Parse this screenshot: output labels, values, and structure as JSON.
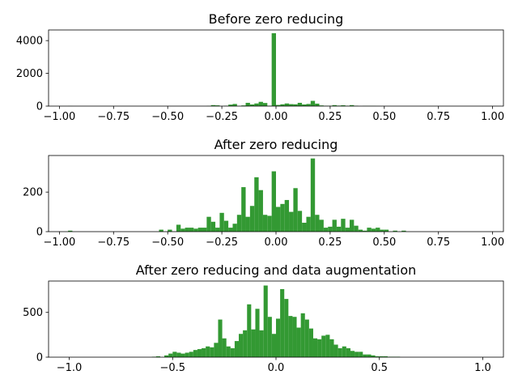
{
  "chart_data": [
    {
      "type": "bar",
      "title": "Before zero reducing",
      "xlim": [
        -1.05,
        1.05
      ],
      "ylim": [
        0,
        4650
      ],
      "xticks": [
        -1.0,
        -0.75,
        -0.5,
        -0.25,
        0.0,
        0.25,
        0.5,
        0.75,
        1.0
      ],
      "xtick_labels": [
        "−1.00",
        "−0.75",
        "−0.50",
        "−0.25",
        "0.00",
        "0.25",
        "0.50",
        "0.75",
        "1.00"
      ],
      "yticks": [
        0,
        2000,
        4000
      ],
      "ytick_labels": [
        "0",
        "2000",
        "4000"
      ],
      "bar_width": 0.02,
      "bar_color": "#339933",
      "x": [
        -0.95,
        -0.31,
        -0.29,
        -0.27,
        -0.23,
        -0.21,
        -0.19,
        -0.15,
        -0.13,
        -0.11,
        -0.09,
        -0.07,
        -0.05,
        -0.03,
        -0.01,
        0.01,
        0.03,
        0.05,
        0.07,
        0.09,
        0.11,
        0.13,
        0.15,
        0.17,
        0.19,
        0.21,
        0.23,
        0.25,
        0.27,
        0.29,
        0.31,
        0.33,
        0.35,
        0.37,
        0.41,
        0.43,
        0.45,
        0.47
      ],
      "values": [
        5,
        10,
        60,
        45,
        20,
        90,
        130,
        40,
        200,
        100,
        160,
        260,
        190,
        20,
        4450,
        70,
        110,
        160,
        120,
        110,
        200,
        100,
        130,
        320,
        150,
        40,
        20,
        20,
        60,
        30,
        50,
        20,
        60,
        20,
        10,
        10,
        10,
        5
      ]
    },
    {
      "type": "bar",
      "title": "After zero reducing",
      "xlim": [
        -1.05,
        1.05
      ],
      "ylim": [
        0,
        385
      ],
      "xticks": [
        -1.0,
        -0.75,
        -0.5,
        -0.25,
        0.0,
        0.25,
        0.5,
        0.75,
        1.0
      ],
      "xtick_labels": [
        "−1.00",
        "−0.75",
        "−0.50",
        "−0.25",
        "0.00",
        "0.25",
        "0.50",
        "0.75",
        "1.00"
      ],
      "yticks": [
        0,
        200
      ],
      "ytick_labels": [
        "0",
        "200"
      ],
      "bar_width": 0.02,
      "bar_color": "#339933",
      "x": [
        -0.95,
        -0.53,
        -0.49,
        -0.45,
        -0.43,
        -0.41,
        -0.39,
        -0.37,
        -0.35,
        -0.33,
        -0.31,
        -0.29,
        -0.27,
        -0.25,
        -0.23,
        -0.21,
        -0.19,
        -0.17,
        -0.15,
        -0.13,
        -0.11,
        -0.09,
        -0.07,
        -0.05,
        -0.03,
        -0.01,
        0.01,
        0.03,
        0.05,
        0.07,
        0.09,
        0.11,
        0.13,
        0.15,
        0.17,
        0.19,
        0.21,
        0.23,
        0.25,
        0.27,
        0.29,
        0.31,
        0.33,
        0.35,
        0.37,
        0.39,
        0.41,
        0.43,
        0.45,
        0.47,
        0.49,
        0.51,
        0.55,
        0.59
      ],
      "values": [
        5,
        10,
        10,
        35,
        15,
        20,
        20,
        15,
        20,
        20,
        75,
        50,
        20,
        95,
        55,
        20,
        40,
        85,
        225,
        75,
        130,
        275,
        210,
        85,
        80,
        305,
        125,
        140,
        160,
        100,
        220,
        105,
        45,
        75,
        370,
        85,
        60,
        20,
        25,
        60,
        25,
        65,
        20,
        60,
        30,
        10,
        5,
        20,
        15,
        20,
        10,
        10,
        5,
        5
      ]
    },
    {
      "type": "bar",
      "title": "After zero reducing and data augmentation",
      "xlim": [
        -1.1,
        1.1
      ],
      "ylim": [
        0,
        850
      ],
      "xticks": [
        -1.0,
        -0.5,
        0.0,
        0.5,
        1.0
      ],
      "xtick_labels": [
        "−1.0",
        "−0.5",
        "0.0",
        "0.5",
        "1.0"
      ],
      "yticks": [
        0,
        500
      ],
      "ytick_labels": [
        "0",
        "500"
      ],
      "bar_width": 0.02,
      "bar_color": "#339933",
      "x": [
        -0.59,
        -0.57,
        -0.53,
        -0.51,
        -0.49,
        -0.47,
        -0.45,
        -0.43,
        -0.41,
        -0.39,
        -0.37,
        -0.35,
        -0.33,
        -0.31,
        -0.29,
        -0.27,
        -0.25,
        -0.23,
        -0.21,
        -0.19,
        -0.17,
        -0.15,
        -0.13,
        -0.11,
        -0.09,
        -0.07,
        -0.05,
        -0.03,
        -0.01,
        0.01,
        0.03,
        0.05,
        0.07,
        0.09,
        0.11,
        0.13,
        0.15,
        0.17,
        0.19,
        0.21,
        0.23,
        0.25,
        0.27,
        0.29,
        0.31,
        0.33,
        0.35,
        0.37,
        0.39,
        0.41,
        0.43,
        0.45,
        0.47,
        0.49,
        0.51,
        0.53,
        0.55,
        0.57,
        0.59
      ],
      "values": [
        5,
        10,
        20,
        40,
        60,
        50,
        40,
        50,
        60,
        80,
        90,
        100,
        120,
        110,
        160,
        420,
        210,
        120,
        100,
        180,
        260,
        300,
        590,
        310,
        540,
        300,
        800,
        450,
        260,
        430,
        760,
        650,
        460,
        450,
        330,
        490,
        420,
        320,
        210,
        200,
        240,
        250,
        200,
        140,
        100,
        120,
        100,
        70,
        60,
        60,
        30,
        30,
        20,
        10,
        10,
        10,
        5,
        5,
        5
      ]
    }
  ]
}
